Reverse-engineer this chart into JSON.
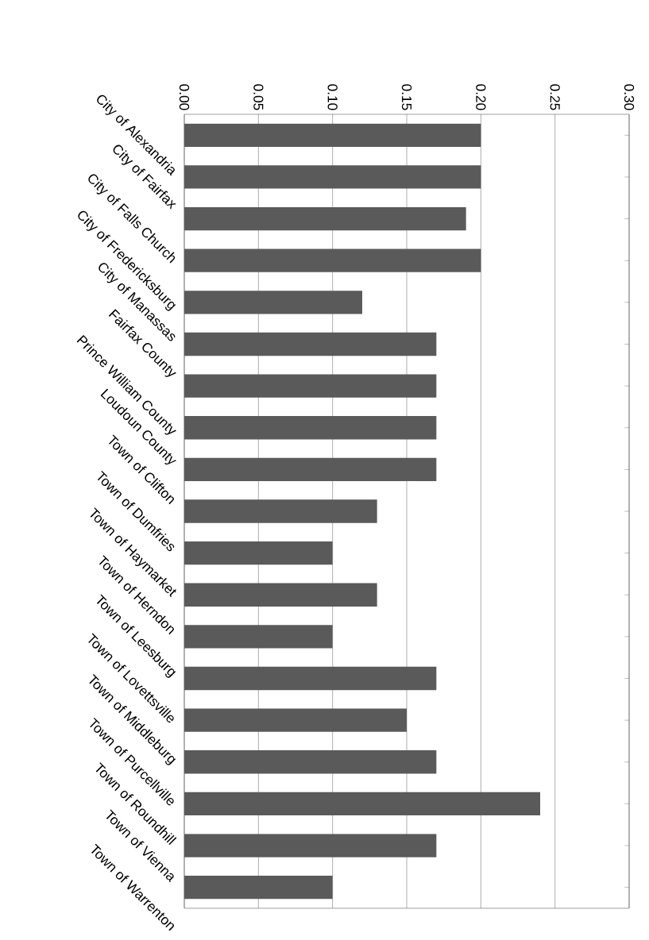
{
  "chart_data": {
    "type": "bar",
    "orientation": "horizontal",
    "categories": [
      "City of Alexandria",
      "City of Fairfax",
      "City of Falls Church",
      "City of Fredericksburg",
      "City of Manassas",
      "Fairfax County",
      "Prince William County",
      "Loudoun County",
      "Town of Clifton",
      "Town of Dumfries",
      "Town of Haymarket",
      "Town of Herndon",
      "Town of Leesburg",
      "Town of Lovettsville",
      "Town of Middleburg",
      "Town of Purcellville",
      "Town of Roundhill",
      "Town of Vienna",
      "Town of Warrenton"
    ],
    "values": [
      0.2,
      0.2,
      0.19,
      0.2,
      0.12,
      0.17,
      0.17,
      0.17,
      0.17,
      0.13,
      0.1,
      0.13,
      0.1,
      0.17,
      0.15,
      0.17,
      0.24,
      0.17,
      0.1
    ],
    "color": "#5a5a5a",
    "xlim": [
      0,
      0.3
    ],
    "xticks": [
      {
        "value": 0,
        "label": "0.00"
      },
      0.05,
      {
        "value": 0.1,
        "label": "0.10"
      },
      0.15,
      {
        "value": 0.2,
        "label": "0.20"
      },
      0.25,
      {
        "value": 0.3,
        "label": "0.30"
      }
    ],
    "grid": "x"
  }
}
